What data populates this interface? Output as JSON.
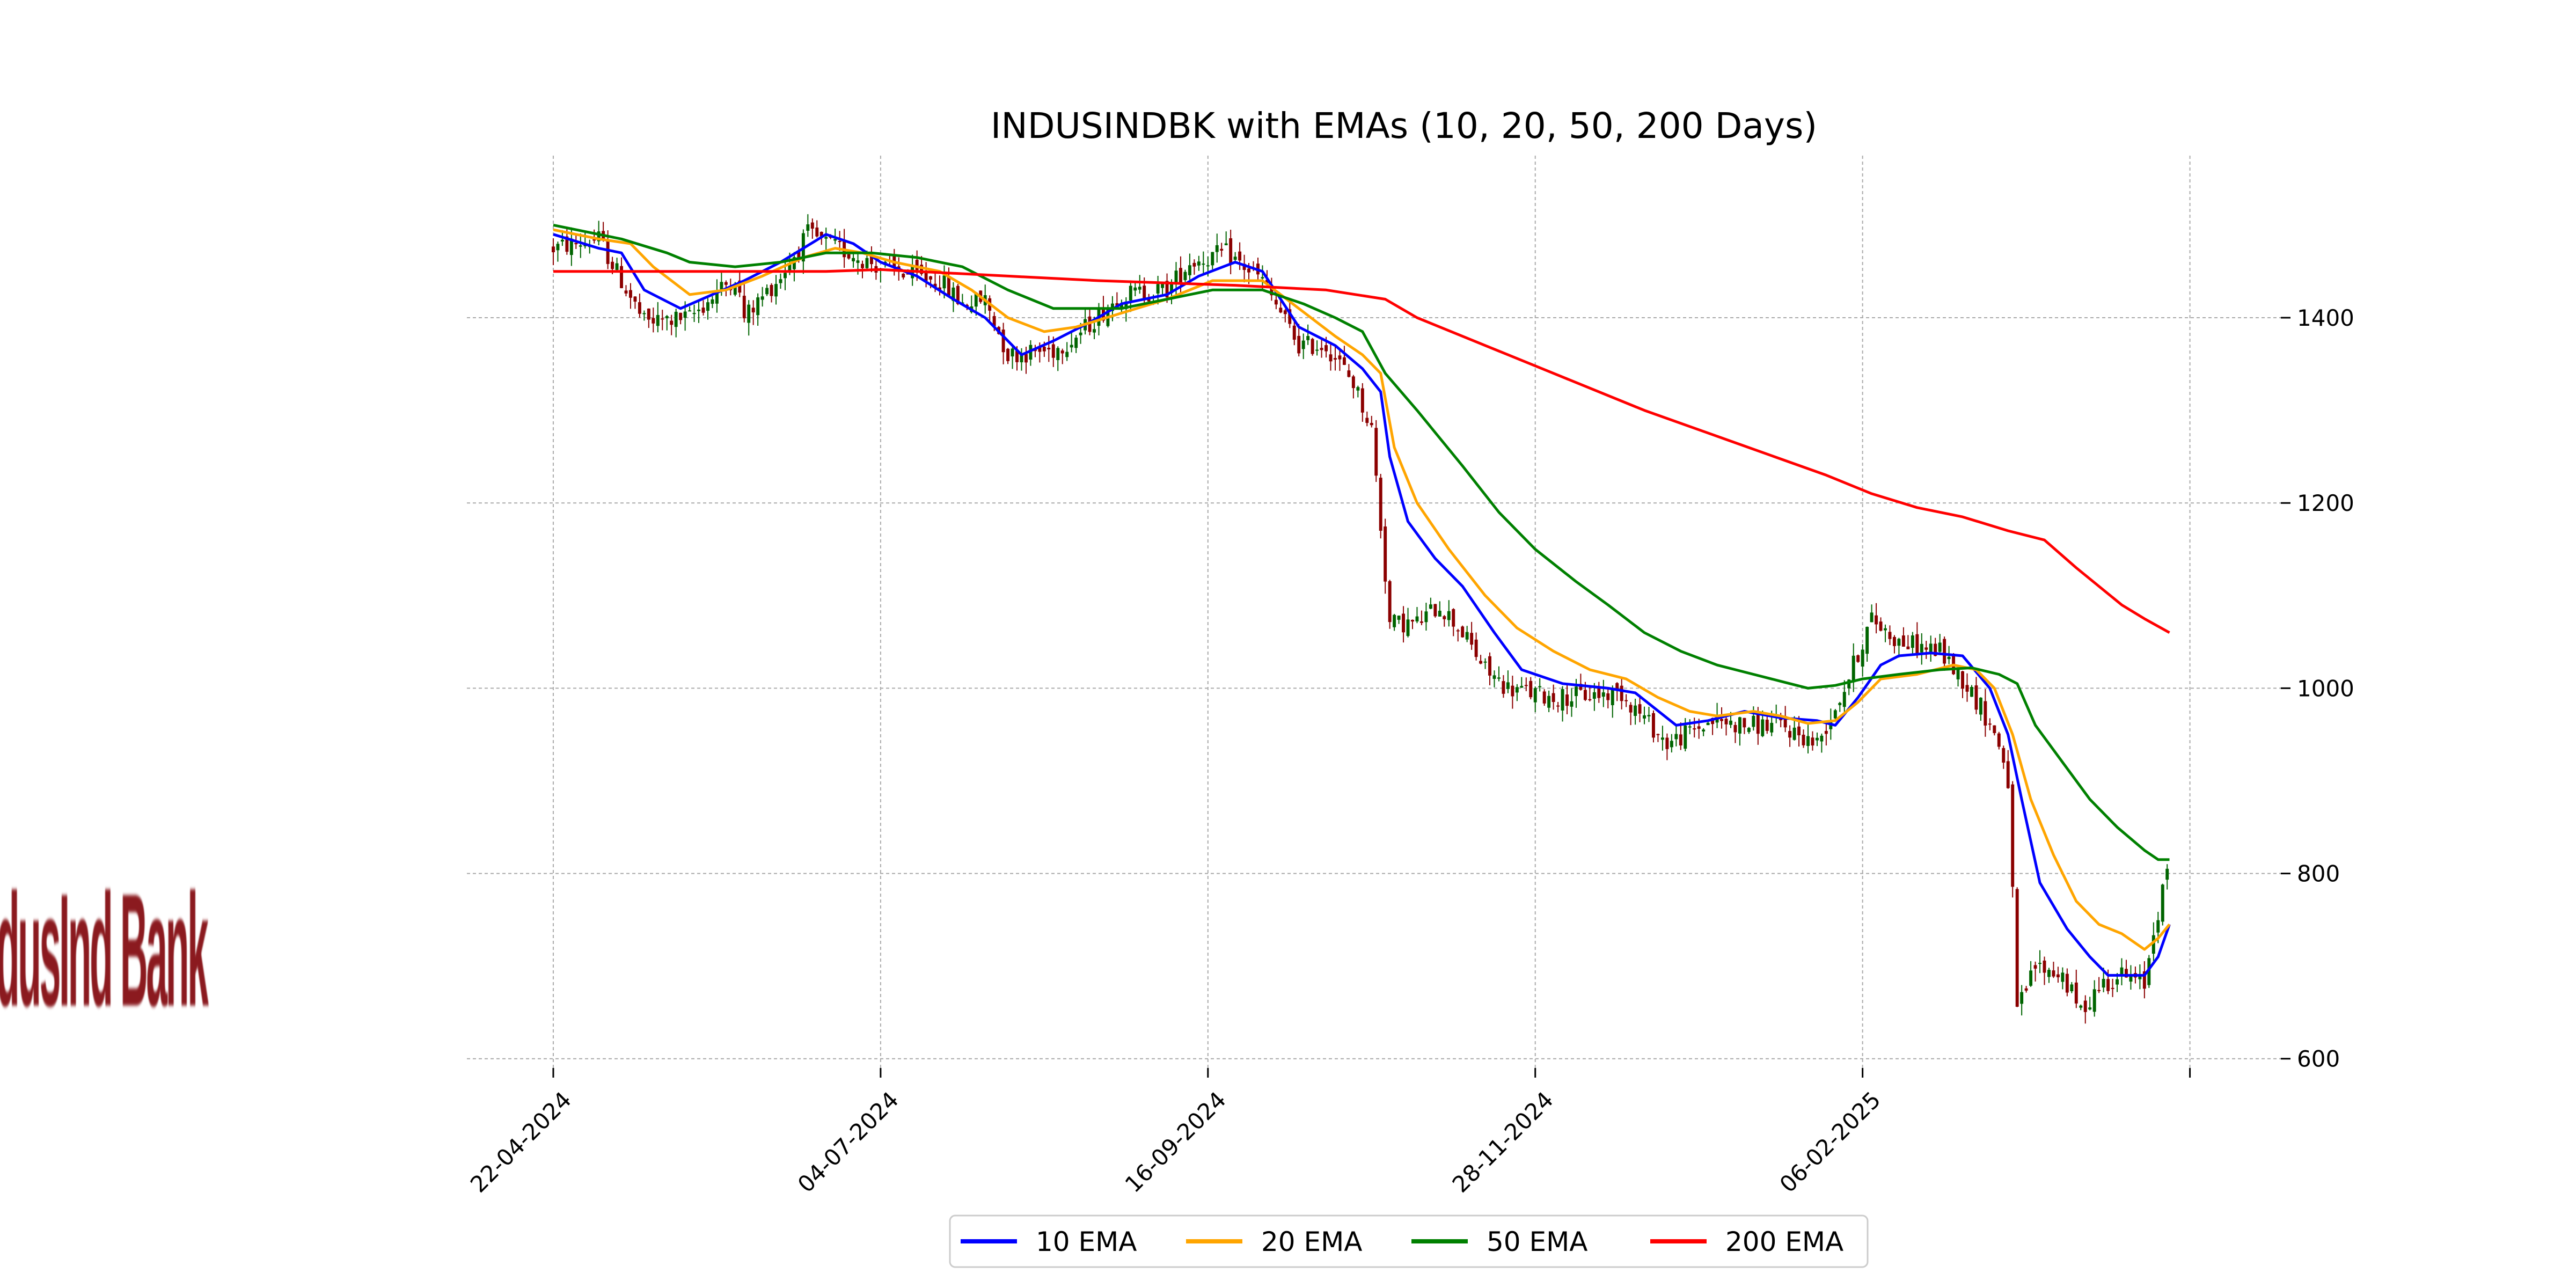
{
  "logo": {
    "text": "IndusInd Bank",
    "color": "#8b1a1f"
  },
  "chart_data": {
    "type": "line",
    "title": "INDUSINDBK with EMAs (10, 20, 50, 200 Days)",
    "xlabel": "",
    "ylabel": "",
    "x_tick_labels": [
      "22-04-2024",
      "04-07-2024",
      "16-09-2024",
      "28-11-2024",
      "06-02-2025",
      ""
    ],
    "x_tick_positions": [
      0,
      72,
      144,
      216,
      288,
      360
    ],
    "x_range": [
      -19,
      380
    ],
    "y_ticks": [
      600,
      800,
      1000,
      1200,
      1400
    ],
    "ylim": [
      590,
      1575
    ],
    "grid": true,
    "y_axis_side": "right",
    "legend_position": "bottom-center",
    "candle_colors": {
      "up": "#006400",
      "down": "#8b0000"
    },
    "candle_anchors": [
      [
        0,
        1475
      ],
      [
        10,
        1485
      ],
      [
        15,
        1440
      ],
      [
        20,
        1395
      ],
      [
        30,
        1400
      ],
      [
        40,
        1445
      ],
      [
        42,
        1400
      ],
      [
        50,
        1445
      ],
      [
        56,
        1490
      ],
      [
        60,
        1480
      ],
      [
        65,
        1470
      ],
      [
        72,
        1455
      ],
      [
        80,
        1445
      ],
      [
        85,
        1440
      ],
      [
        90,
        1415
      ],
      [
        95,
        1420
      ],
      [
        100,
        1360
      ],
      [
        110,
        1365
      ],
      [
        115,
        1380
      ],
      [
        125,
        1425
      ],
      [
        135,
        1430
      ],
      [
        140,
        1460
      ],
      [
        148,
        1470
      ],
      [
        156,
        1440
      ],
      [
        164,
        1370
      ],
      [
        170,
        1370
      ],
      [
        176,
        1330
      ],
      [
        180,
        1280
      ],
      [
        184,
        1070
      ],
      [
        190,
        1070
      ],
      [
        195,
        1090
      ],
      [
        200,
        1060
      ],
      [
        205,
        1020
      ],
      [
        210,
        1000
      ],
      [
        220,
        990
      ],
      [
        235,
        995
      ],
      [
        245,
        940
      ],
      [
        255,
        965
      ],
      [
        262,
        960
      ],
      [
        270,
        960
      ],
      [
        278,
        940
      ],
      [
        284,
        1000
      ],
      [
        290,
        1075
      ],
      [
        296,
        1050
      ],
      [
        305,
        1040
      ],
      [
        310,
        1010
      ],
      [
        314,
        980
      ],
      [
        318,
        940
      ],
      [
        320,
        900
      ],
      [
        322,
        650
      ],
      [
        326,
        700
      ],
      [
        332,
        690
      ],
      [
        336,
        650
      ],
      [
        340,
        680
      ],
      [
        345,
        690
      ],
      [
        350,
        680
      ],
      [
        352,
        740
      ],
      [
        355,
        800
      ],
      [
        355.5,
        820
      ]
    ],
    "series": [
      {
        "name": "10 EMA",
        "color": "#0000ff",
        "points": [
          [
            0,
            1490
          ],
          [
            10,
            1475
          ],
          [
            15,
            1470
          ],
          [
            20,
            1430
          ],
          [
            28,
            1410
          ],
          [
            35,
            1425
          ],
          [
            42,
            1440
          ],
          [
            50,
            1460
          ],
          [
            60,
            1490
          ],
          [
            66,
            1480
          ],
          [
            72,
            1460
          ],
          [
            80,
            1445
          ],
          [
            88,
            1420
          ],
          [
            95,
            1400
          ],
          [
            103,
            1360
          ],
          [
            110,
            1375
          ],
          [
            118,
            1395
          ],
          [
            125,
            1415
          ],
          [
            135,
            1425
          ],
          [
            142,
            1445
          ],
          [
            150,
            1460
          ],
          [
            156,
            1450
          ],
          [
            164,
            1390
          ],
          [
            172,
            1370
          ],
          [
            178,
            1345
          ],
          [
            182,
            1320
          ],
          [
            184,
            1250
          ],
          [
            188,
            1180
          ],
          [
            194,
            1140
          ],
          [
            200,
            1110
          ],
          [
            207,
            1060
          ],
          [
            213,
            1020
          ],
          [
            222,
            1005
          ],
          [
            232,
            1000
          ],
          [
            238,
            995
          ],
          [
            247,
            960
          ],
          [
            254,
            965
          ],
          [
            262,
            975
          ],
          [
            270,
            968
          ],
          [
            278,
            965
          ],
          [
            282,
            960
          ],
          [
            287,
            990
          ],
          [
            292,
            1025
          ],
          [
            296,
            1035
          ],
          [
            303,
            1038
          ],
          [
            310,
            1035
          ],
          [
            316,
            1000
          ],
          [
            320,
            950
          ],
          [
            323,
            880
          ],
          [
            327,
            790
          ],
          [
            333,
            740
          ],
          [
            338,
            710
          ],
          [
            342,
            690
          ],
          [
            346,
            690
          ],
          [
            350,
            690
          ],
          [
            353,
            710
          ],
          [
            355.5,
            745
          ]
        ]
      },
      {
        "name": "20 EMA",
        "color": "#ffa500",
        "points": [
          [
            0,
            1495
          ],
          [
            10,
            1485
          ],
          [
            17,
            1480
          ],
          [
            22,
            1455
          ],
          [
            30,
            1425
          ],
          [
            38,
            1430
          ],
          [
            46,
            1445
          ],
          [
            55,
            1465
          ],
          [
            62,
            1475
          ],
          [
            68,
            1470
          ],
          [
            75,
            1460
          ],
          [
            85,
            1450
          ],
          [
            92,
            1430
          ],
          [
            100,
            1400
          ],
          [
            108,
            1385
          ],
          [
            115,
            1390
          ],
          [
            125,
            1405
          ],
          [
            135,
            1420
          ],
          [
            145,
            1440
          ],
          [
            156,
            1440
          ],
          [
            164,
            1410
          ],
          [
            172,
            1380
          ],
          [
            178,
            1360
          ],
          [
            182,
            1340
          ],
          [
            185,
            1260
          ],
          [
            190,
            1200
          ],
          [
            197,
            1150
          ],
          [
            205,
            1100
          ],
          [
            212,
            1065
          ],
          [
            220,
            1040
          ],
          [
            228,
            1020
          ],
          [
            236,
            1010
          ],
          [
            243,
            990
          ],
          [
            250,
            975
          ],
          [
            256,
            970
          ],
          [
            264,
            975
          ],
          [
            270,
            970
          ],
          [
            276,
            962
          ],
          [
            282,
            965
          ],
          [
            287,
            985
          ],
          [
            292,
            1010
          ],
          [
            300,
            1015
          ],
          [
            308,
            1025
          ],
          [
            313,
            1020
          ],
          [
            317,
            1000
          ],
          [
            321,
            950
          ],
          [
            325,
            880
          ],
          [
            330,
            820
          ],
          [
            335,
            770
          ],
          [
            340,
            745
          ],
          [
            345,
            735
          ],
          [
            350,
            718
          ],
          [
            353,
            730
          ],
          [
            355.5,
            745
          ]
        ]
      },
      {
        "name": "50 EMA",
        "color": "#008000",
        "points": [
          [
            0,
            1500
          ],
          [
            15,
            1485
          ],
          [
            25,
            1470
          ],
          [
            30,
            1460
          ],
          [
            40,
            1455
          ],
          [
            50,
            1460
          ],
          [
            60,
            1470
          ],
          [
            70,
            1470
          ],
          [
            80,
            1465
          ],
          [
            90,
            1455
          ],
          [
            100,
            1430
          ],
          [
            110,
            1410
          ],
          [
            125,
            1410
          ],
          [
            135,
            1420
          ],
          [
            145,
            1430
          ],
          [
            156,
            1430
          ],
          [
            165,
            1415
          ],
          [
            172,
            1400
          ],
          [
            178,
            1385
          ],
          [
            183,
            1340
          ],
          [
            190,
            1300
          ],
          [
            200,
            1240
          ],
          [
            208,
            1190
          ],
          [
            216,
            1150
          ],
          [
            225,
            1115
          ],
          [
            232,
            1090
          ],
          [
            240,
            1060
          ],
          [
            248,
            1040
          ],
          [
            256,
            1025
          ],
          [
            264,
            1015
          ],
          [
            272,
            1005
          ],
          [
            276,
            1000
          ],
          [
            282,
            1003
          ],
          [
            288,
            1010
          ],
          [
            296,
            1015
          ],
          [
            305,
            1020
          ],
          [
            312,
            1022
          ],
          [
            318,
            1015
          ],
          [
            322,
            1005
          ],
          [
            326,
            960
          ],
          [
            332,
            920
          ],
          [
            338,
            880
          ],
          [
            344,
            850
          ],
          [
            350,
            825
          ],
          [
            353,
            815
          ],
          [
            355.5,
            815
          ]
        ]
      },
      {
        "name": "200 EMA",
        "color": "#ff0000",
        "points": [
          [
            0,
            1450
          ],
          [
            30,
            1450
          ],
          [
            60,
            1450
          ],
          [
            72,
            1452
          ],
          [
            100,
            1445
          ],
          [
            120,
            1440
          ],
          [
            150,
            1435
          ],
          [
            170,
            1430
          ],
          [
            183,
            1420
          ],
          [
            190,
            1400
          ],
          [
            205,
            1370
          ],
          [
            220,
            1340
          ],
          [
            240,
            1300
          ],
          [
            260,
            1265
          ],
          [
            280,
            1230
          ],
          [
            290,
            1210
          ],
          [
            300,
            1195
          ],
          [
            310,
            1185
          ],
          [
            320,
            1170
          ],
          [
            328,
            1160
          ],
          [
            335,
            1130
          ],
          [
            345,
            1090
          ],
          [
            350,
            1075
          ],
          [
            355.5,
            1060
          ]
        ]
      }
    ]
  }
}
